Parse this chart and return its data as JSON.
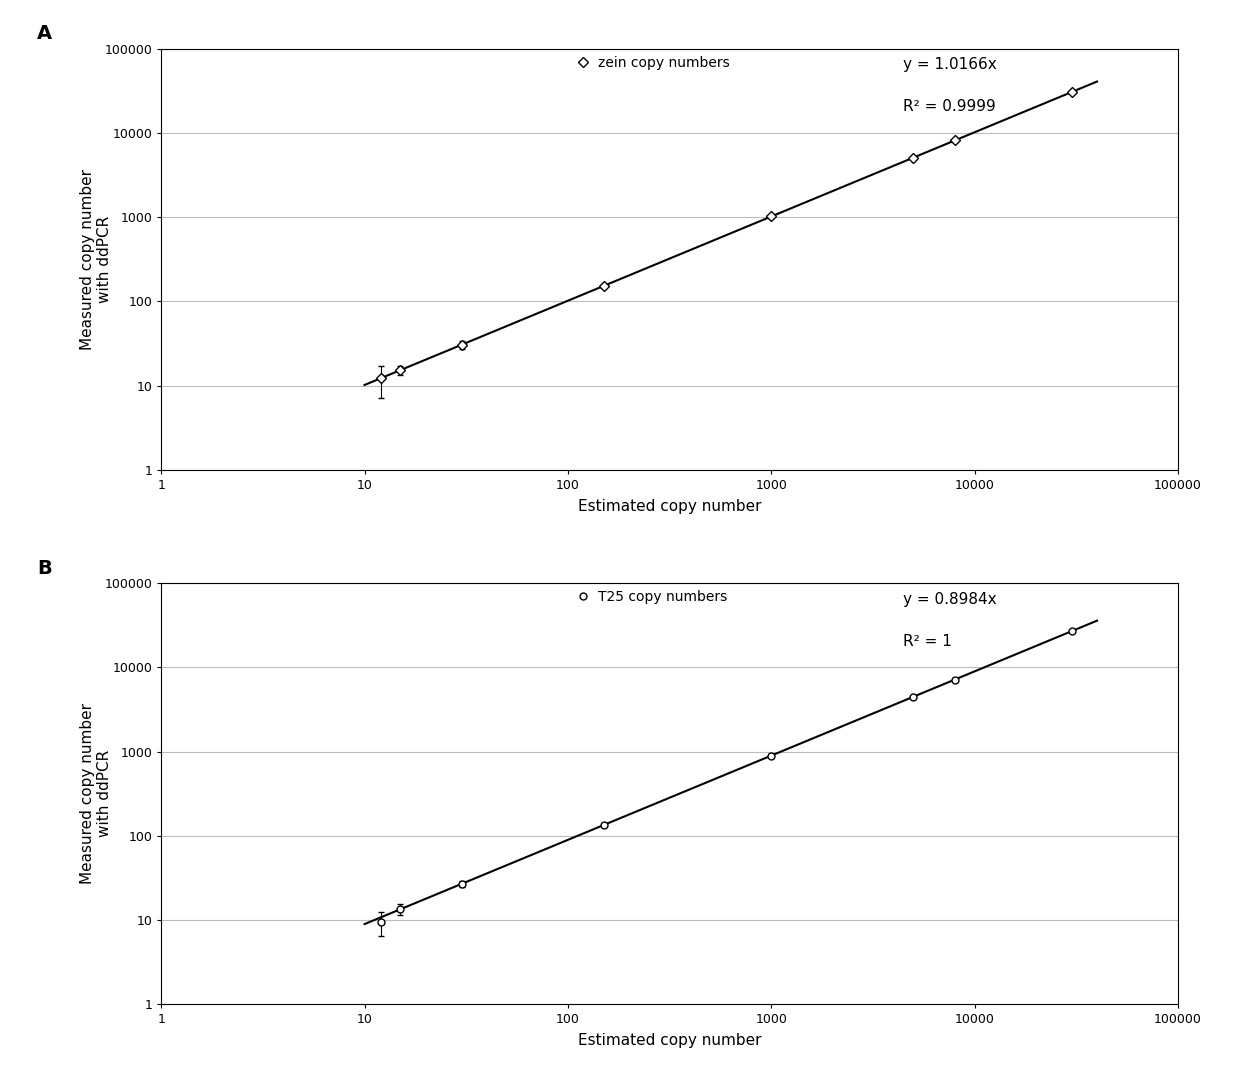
{
  "panel_A": {
    "label": "A",
    "legend_marker": "zein copy numbers",
    "equation": "y = 1.0166x",
    "r_squared": "R² = 0.9999",
    "slope": 1.0166,
    "x_data": [
      12,
      15,
      30,
      150,
      1000,
      5000,
      8000,
      30000
    ],
    "y_data": [
      12.2,
      15.3,
      30.5,
      152.5,
      1016.6,
      5083,
      8133,
      30498
    ],
    "y_err_low": [
      5,
      2,
      3,
      10,
      50,
      200,
      300,
      800
    ],
    "y_err_high": [
      5,
      2,
      3,
      10,
      50,
      200,
      300,
      800
    ],
    "marker": "D",
    "markersize": 5,
    "markerfacecolor": "white",
    "markeredgecolor": "black",
    "line_color": "black",
    "line_x_start": 10,
    "line_x_end": 40000,
    "xlabel": "Estimated copy number",
    "ylabel": "Measured copy number\nwith ddPCR",
    "xlim_low": 1,
    "xlim_high": 100000,
    "ylim_low": 1,
    "ylim_high": 100000,
    "xticks": [
      1,
      10,
      100,
      1000,
      10000,
      100000
    ],
    "yticks": [
      1,
      10,
      100,
      1000,
      10000,
      100000
    ],
    "xtick_labels": [
      "1",
      "10",
      "100",
      "1000",
      "10000",
      "100000"
    ],
    "ytick_labels": [
      "1",
      "10",
      "100",
      "1000",
      "10000",
      "100000"
    ]
  },
  "panel_B": {
    "label": "B",
    "legend_marker": "T25 copy numbers",
    "equation": "y = 0.8984x",
    "r_squared": "R² = 1",
    "slope": 0.8984,
    "x_data": [
      12,
      15,
      30,
      150,
      1000,
      5000,
      8000,
      30000
    ],
    "y_data": [
      9.5,
      13.5,
      26.95,
      134.76,
      898.4,
      4492,
      7187,
      26952
    ],
    "y_err_low": [
      3,
      2,
      2,
      8,
      30,
      150,
      250,
      500
    ],
    "y_err_high": [
      3,
      2,
      2,
      8,
      30,
      150,
      250,
      500
    ],
    "marker": "o",
    "markersize": 5,
    "markerfacecolor": "white",
    "markeredgecolor": "black",
    "line_color": "black",
    "line_x_start": 10,
    "line_x_end": 40000,
    "xlabel": "Estimated copy number",
    "ylabel": "Measured copy number\nwith ddPCR",
    "xlim_low": 1,
    "xlim_high": 100000,
    "ylim_low": 1,
    "ylim_high": 100000,
    "xticks": [
      1,
      10,
      100,
      1000,
      10000,
      100000
    ],
    "yticks": [
      1,
      10,
      100,
      1000,
      10000,
      100000
    ],
    "xtick_labels": [
      "1",
      "10",
      "100",
      "1000",
      "10000",
      "100000"
    ],
    "ytick_labels": [
      "1",
      "10",
      "100",
      "1000",
      "10000",
      "100000"
    ]
  },
  "fig_background": "#ffffff",
  "panel_background": "#ffffff",
  "border_color": "#000000",
  "grid_color": "#bbbbbb",
  "grid_linewidth": 0.8,
  "tick_fontsize": 9,
  "label_fontsize": 11,
  "equation_fontsize": 11,
  "legend_fontsize": 10,
  "panel_label_fontsize": 14
}
